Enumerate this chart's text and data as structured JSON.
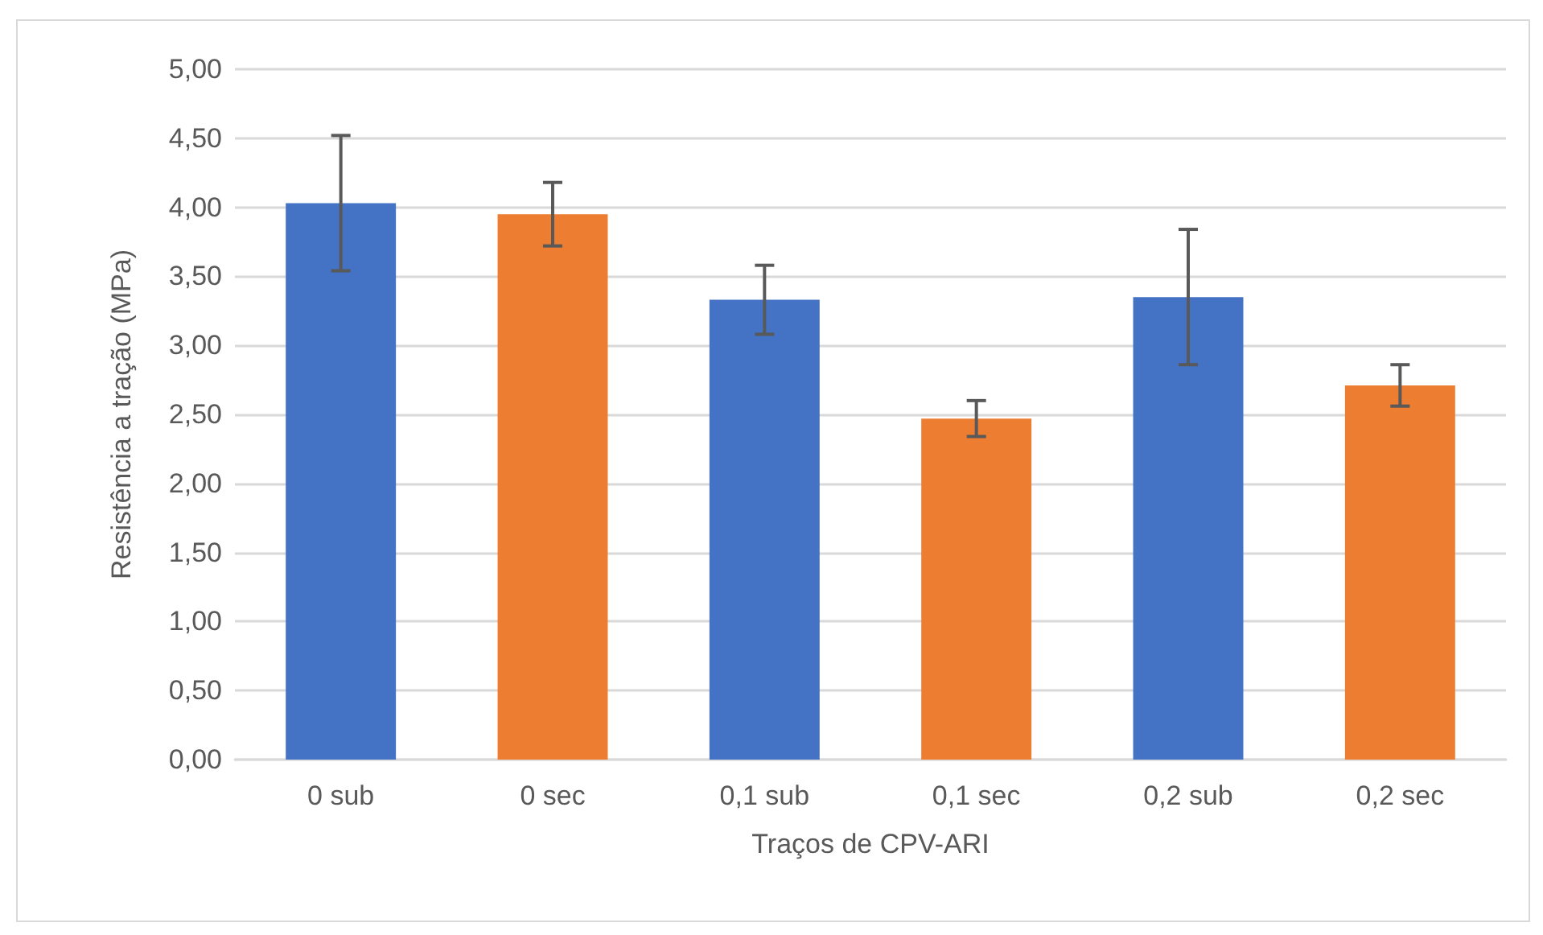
{
  "chart_data": {
    "type": "bar",
    "xlabel": "Traços de CPV-ARI",
    "ylabel": "Resistência a tração (MPa)",
    "categories": [
      "0 sub",
      "0 sec",
      "0,1 sub",
      "0,1 sec",
      "0,2 sub",
      "0,2 sec"
    ],
    "values": [
      4.03,
      3.95,
      3.33,
      2.47,
      3.35,
      2.71
    ],
    "errors": [
      0.49,
      0.23,
      0.25,
      0.13,
      0.49,
      0.15
    ],
    "colors": [
      "#4472c4",
      "#ed7d31",
      "#4472c4",
      "#ed7d31",
      "#4472c4",
      "#ed7d31"
    ],
    "ylim": [
      0,
      5
    ],
    "yticks": [
      {
        "value": 0,
        "label": "0,00"
      },
      {
        "value": 0.5,
        "label": "0,50"
      },
      {
        "value": 1,
        "label": "1,00"
      },
      {
        "value": 1.5,
        "label": "1,50"
      },
      {
        "value": 2,
        "label": "2,00"
      },
      {
        "value": 2.5,
        "label": "2,50"
      },
      {
        "value": 3,
        "label": "3,00"
      },
      {
        "value": 3.5,
        "label": "3,50"
      },
      {
        "value": 4,
        "label": "4,00"
      },
      {
        "value": 4.5,
        "label": "4,50"
      },
      {
        "value": 5,
        "label": "5,00"
      }
    ],
    "grid": "y"
  }
}
